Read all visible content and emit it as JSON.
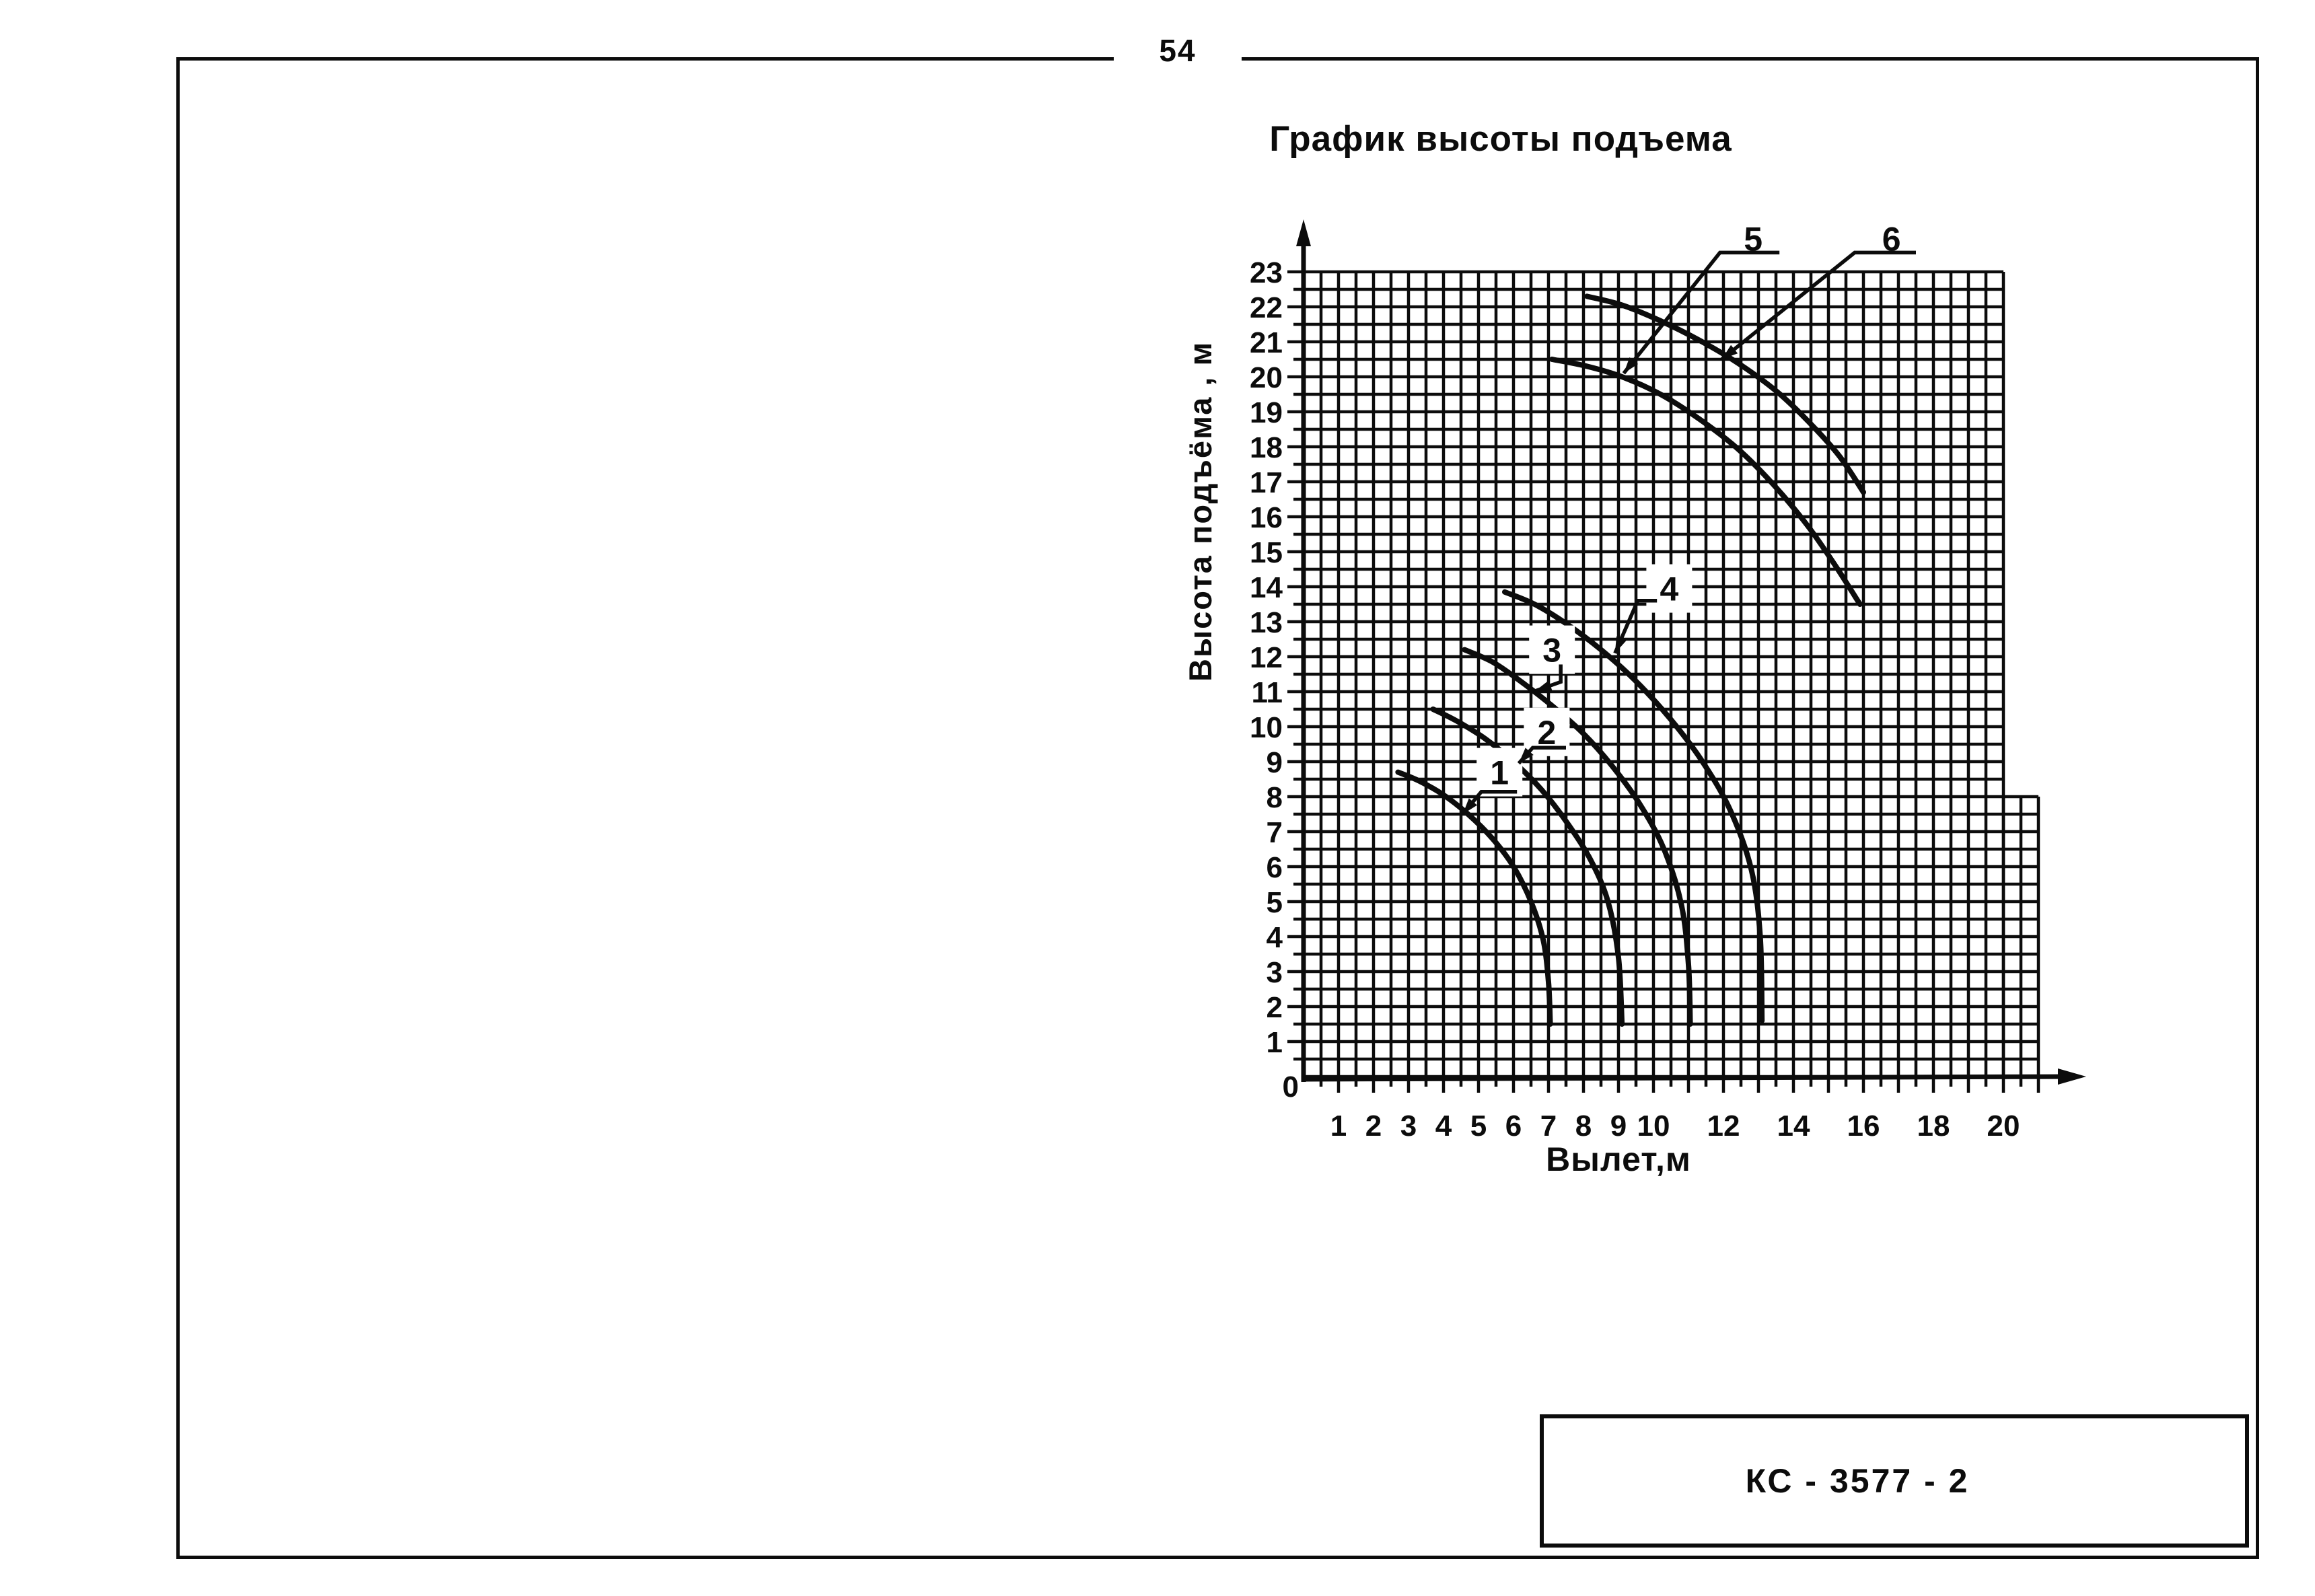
{
  "page": {
    "number": "54",
    "stamp": "КС - 3577 - 2"
  },
  "chart": {
    "title": "График высоты подъема",
    "y_axis_title": "Высота подъёма , м",
    "x_axis_title": "Вылет,м"
  },
  "chart_data": {
    "type": "line",
    "title": "График высоты подъема",
    "xlabel": "Вылет,м",
    "ylabel": "Высота подъёма , м",
    "xlim": [
      0,
      22
    ],
    "ylim": [
      0,
      24.5
    ],
    "grid": true,
    "grid_step": 0.5,
    "grid_regions": [
      {
        "x0": 0,
        "x1": 20,
        "y0": 0,
        "y1": 23
      },
      {
        "x0": 20,
        "x1": 21,
        "y0": 0,
        "y1": 8
      }
    ],
    "tick_step": 0.5,
    "x_tick_labels": [
      1,
      2,
      3,
      4,
      5,
      6,
      7,
      8,
      9,
      10,
      12,
      14,
      16,
      18,
      20
    ],
    "y_tick_labels": [
      0,
      1,
      2,
      3,
      4,
      5,
      6,
      7,
      8,
      9,
      10,
      11,
      12,
      13,
      14,
      15,
      16,
      17,
      18,
      19,
      20,
      21,
      22,
      23
    ],
    "ink_color": "#0c0c0c",
    "series": [
      {
        "name": "1",
        "points": [
          [
            2.7,
            8.7
          ],
          [
            3.3,
            8.45
          ],
          [
            4.0,
            8.05
          ],
          [
            4.7,
            7.5
          ],
          [
            5.4,
            6.8
          ],
          [
            6.0,
            6.0
          ],
          [
            6.5,
            5.0
          ],
          [
            6.85,
            3.9
          ],
          [
            7.0,
            2.7
          ],
          [
            7.05,
            1.5
          ]
        ]
      },
      {
        "name": "2",
        "points": [
          [
            3.7,
            10.5
          ],
          [
            4.4,
            10.15
          ],
          [
            5.2,
            9.65
          ],
          [
            6.0,
            9.0
          ],
          [
            6.8,
            8.2
          ],
          [
            7.5,
            7.3
          ],
          [
            8.2,
            6.2
          ],
          [
            8.7,
            5.0
          ],
          [
            9.0,
            3.4
          ],
          [
            9.1,
            1.5
          ]
        ]
      },
      {
        "name": "3",
        "points": [
          [
            4.6,
            12.2
          ],
          [
            5.4,
            11.85
          ],
          [
            6.2,
            11.3
          ],
          [
            7.1,
            10.6
          ],
          [
            8.0,
            9.8
          ],
          [
            8.8,
            8.9
          ],
          [
            9.6,
            7.8
          ],
          [
            10.3,
            6.5
          ],
          [
            10.8,
            4.9
          ],
          [
            11.0,
            3.2
          ],
          [
            11.05,
            1.5
          ]
        ]
      },
      {
        "name": "4",
        "points": [
          [
            5.75,
            13.85
          ],
          [
            6.6,
            13.5
          ],
          [
            7.5,
            12.95
          ],
          [
            8.5,
            12.2
          ],
          [
            9.5,
            11.3
          ],
          [
            10.5,
            10.2
          ],
          [
            11.4,
            9.0
          ],
          [
            12.2,
            7.6
          ],
          [
            12.8,
            5.9
          ],
          [
            13.05,
            4.0
          ],
          [
            13.1,
            1.6
          ]
        ]
      },
      {
        "name": "5",
        "points": [
          [
            7.1,
            20.5
          ],
          [
            8.1,
            20.3
          ],
          [
            9.1,
            20.0
          ],
          [
            10.2,
            19.5
          ],
          [
            11.3,
            18.8
          ],
          [
            12.4,
            17.95
          ],
          [
            13.4,
            16.95
          ],
          [
            14.4,
            15.75
          ],
          [
            15.2,
            14.6
          ],
          [
            15.9,
            13.5
          ]
        ]
      },
      {
        "name": "6",
        "points": [
          [
            8.1,
            22.3
          ],
          [
            9.1,
            22.05
          ],
          [
            10.2,
            21.6
          ],
          [
            11.3,
            21.05
          ],
          [
            12.4,
            20.4
          ],
          [
            13.5,
            19.6
          ],
          [
            14.4,
            18.75
          ],
          [
            15.3,
            17.75
          ],
          [
            16.0,
            16.7
          ]
        ]
      }
    ],
    "curve_labels": [
      {
        "text": "1",
        "at": [
          5.6,
          8.7
        ],
        "leader": [
          [
            6.1,
            8.14
          ],
          [
            5.08,
            8.14
          ],
          [
            4.55,
            7.5
          ]
        ]
      },
      {
        "text": "2",
        "at": [
          6.95,
          9.85
        ],
        "leader": [
          [
            7.5,
            9.4
          ],
          [
            6.55,
            9.4
          ],
          [
            6.15,
            8.95
          ]
        ]
      },
      {
        "text": "3",
        "at": [
          7.1,
          12.2
        ],
        "leader": [
          [
            7.35,
            11.78
          ],
          [
            7.35,
            11.28
          ],
          [
            6.62,
            11.02
          ]
        ]
      },
      {
        "text": "4",
        "at": [
          10.45,
          13.95
        ],
        "leader": [
          [
            10.1,
            13.6
          ],
          [
            9.55,
            13.6
          ],
          [
            8.9,
            12.1
          ]
        ]
      },
      {
        "text": "5",
        "at": [
          12.85,
          23.95
        ],
        "leader": [
          [
            13.6,
            23.55
          ],
          [
            11.9,
            23.55
          ],
          [
            9.15,
            20.1
          ]
        ]
      },
      {
        "text": "6",
        "at": [
          16.8,
          23.95
        ],
        "leader": [
          [
            17.5,
            23.55
          ],
          [
            15.75,
            23.55
          ],
          [
            11.95,
            20.5
          ]
        ]
      }
    ]
  }
}
